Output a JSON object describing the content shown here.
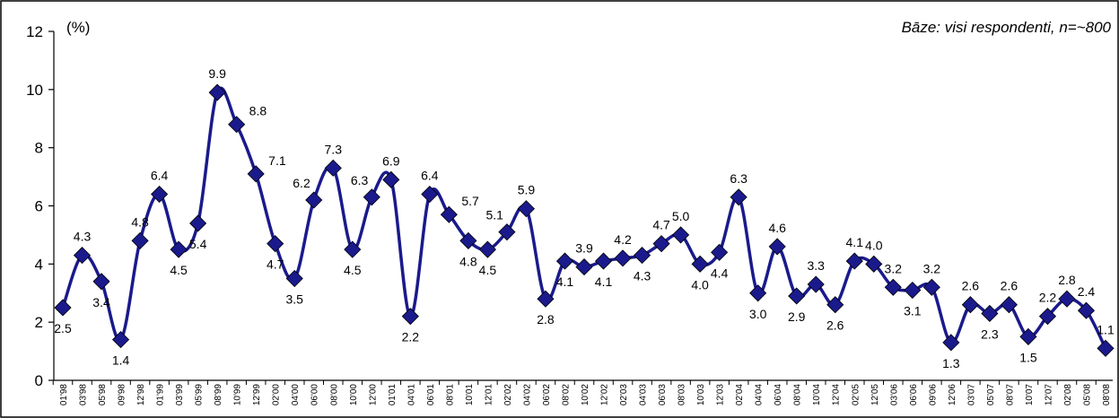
{
  "chart_data": {
    "type": "line",
    "unit_label": "(%)",
    "note": "Bāze: visi respondenti, n=~800",
    "ylim": [
      0,
      12
    ],
    "yticks": [
      "0",
      "2",
      "4",
      "6",
      "8",
      "10",
      "12"
    ],
    "grid": false,
    "legend": "none",
    "colors": {
      "series": "#1a1a8c",
      "axis": "#000000"
    },
    "categories": [
      "01'98",
      "03'98",
      "05'98",
      "09'98",
      "12'98",
      "01'99",
      "03'99",
      "05'99",
      "08'99",
      "10'99",
      "12'99",
      "02'00",
      "04'00",
      "06'00",
      "08'00",
      "10'00",
      "12'00",
      "01'01",
      "04'01",
      "06'01",
      "08'01",
      "10'01",
      "12'01",
      "02'02",
      "04'02",
      "06'02",
      "08'02",
      "10'02",
      "12'02",
      "02'03",
      "04'03",
      "06'03",
      "08'03",
      "10'03",
      "12'03",
      "02'04",
      "04'04",
      "06'04",
      "08'04",
      "10'04",
      "12'04",
      "02'05",
      "12'05",
      "03'06",
      "06'06",
      "09'06",
      "12'06",
      "03'07",
      "05'07",
      "08'07",
      "10'07",
      "12'07",
      "02'08",
      "05'08",
      "08'08"
    ],
    "series": [
      {
        "values": [
          2.5,
          4.3,
          3.4,
          1.4,
          4.8,
          6.4,
          4.5,
          5.4,
          9.9,
          8.8,
          7.1,
          4.7,
          3.5,
          6.2,
          7.3,
          4.5,
          6.3,
          6.9,
          2.2,
          6.4,
          5.7,
          4.8,
          4.5,
          5.1,
          5.9,
          2.8,
          4.1,
          3.9,
          4.1,
          4.2,
          4.3,
          4.7,
          5.0,
          4.0,
          4.4,
          6.3,
          3.0,
          4.6,
          2.9,
          3.3,
          2.6,
          4.1,
          4.0,
          3.2,
          3.1,
          3.2,
          1.3,
          2.6,
          2.3,
          2.6,
          1.5,
          2.2,
          2.8,
          2.4,
          1.1
        ],
        "labels": [
          "2.5",
          "4.3",
          "3.4",
          "1.4",
          "4.8",
          "6.4",
          "4.5",
          "5.4",
          "9.9",
          "8.8",
          "7.1",
          "4.7",
          "3.5",
          "6.2",
          "7.3",
          "4.5",
          "6.3",
          "6.9",
          "2.2",
          "6.4",
          "5.7",
          "4.8",
          "4.5",
          "5.1",
          "5.9",
          "2.8",
          "4.1",
          "3.9",
          "4.1",
          "4.2",
          "4.3",
          "4.7",
          "5.0",
          "4.0",
          "4.4",
          "6.3",
          "3.0",
          "4.6",
          "2.9",
          "3.3",
          "2.6",
          "4.1",
          "4.0",
          "3.2",
          "3.1",
          "3.2",
          "1.3",
          "2.6",
          "2.3",
          "2.6",
          "1.5",
          "2.2",
          "2.8",
          "2.4",
          "1.1"
        ],
        "label_positions": [
          "below",
          "above",
          "below",
          "below",
          "above",
          "above",
          "below",
          "below",
          "above",
          "right",
          "right",
          "below",
          "below",
          "left",
          "above",
          "below",
          "left",
          "above",
          "below",
          "above",
          "right",
          "below",
          "below",
          "left",
          "above",
          "below",
          "below",
          "above",
          "below",
          "above",
          "below",
          "above",
          "above",
          "below",
          "below",
          "above",
          "below",
          "above",
          "below",
          "above",
          "below",
          "above",
          "above",
          "above",
          "below",
          "above",
          "below",
          "above",
          "below",
          "above",
          "below",
          "above",
          "above",
          "above",
          "above"
        ]
      }
    ]
  }
}
